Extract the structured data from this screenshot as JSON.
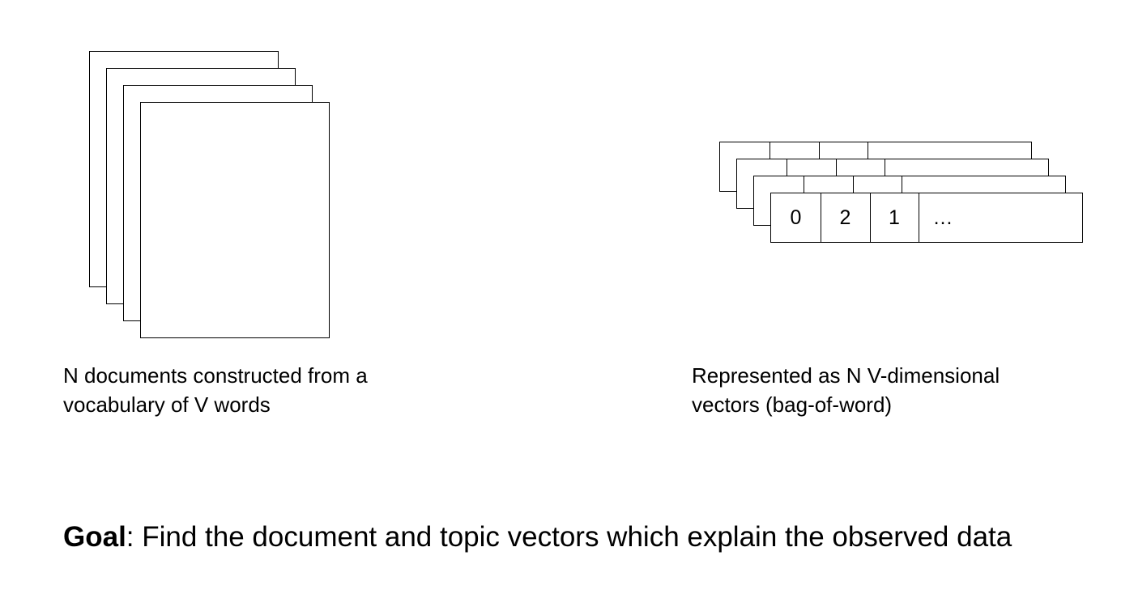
{
  "diagram": {
    "documents": {
      "caption_line1": "N documents constructed from a",
      "caption_line2": "vocabulary of V words"
    },
    "vectors": {
      "cells": [
        "0",
        "2",
        "1",
        "…"
      ],
      "caption_line1": "Represented as N V-dimensional",
      "caption_line2": "vectors (bag-of-word)"
    },
    "goal": {
      "label": "Goal",
      "text": ": Find the document and topic vectors which explain the observed data"
    }
  }
}
